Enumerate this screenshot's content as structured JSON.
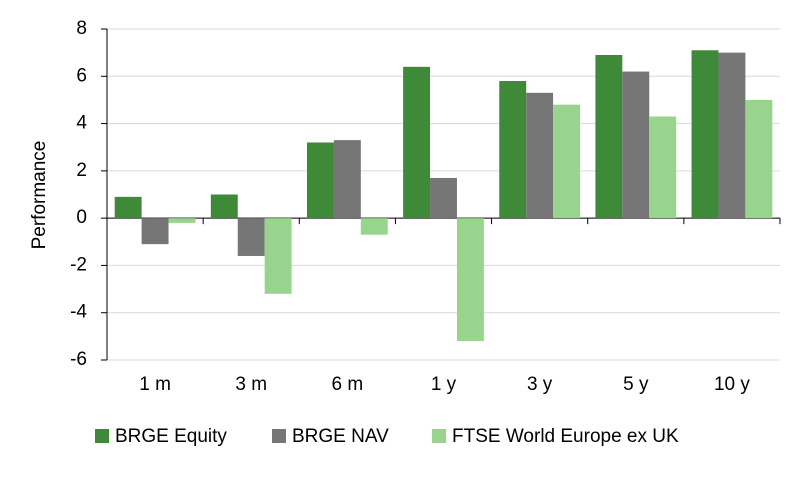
{
  "chart_data": {
    "type": "bar",
    "y_label": "Performance",
    "categories": [
      "1 m",
      "3 m",
      "6 m",
      "1 y",
      "3 y",
      "5 y",
      "10 y"
    ],
    "series": [
      {
        "name": "BRGE Equity",
        "color": "#3e8a38",
        "values": [
          0.9,
          1.0,
          3.2,
          6.4,
          5.8,
          6.9,
          7.1
        ]
      },
      {
        "name": "BRGE NAV",
        "color": "#767676",
        "values": [
          -1.1,
          -1.6,
          3.3,
          1.7,
          5.3,
          6.2,
          7.0
        ]
      },
      {
        "name": "FTSE World Europe ex UK",
        "color": "#98d48e",
        "values": [
          -0.2,
          -3.2,
          -0.7,
          -5.2,
          4.8,
          4.3,
          5.0
        ]
      }
    ],
    "ylim": [
      -6,
      8
    ],
    "yticks": [
      -6,
      -4,
      -2,
      0,
      2,
      4,
      6,
      8
    ],
    "grid": true
  }
}
